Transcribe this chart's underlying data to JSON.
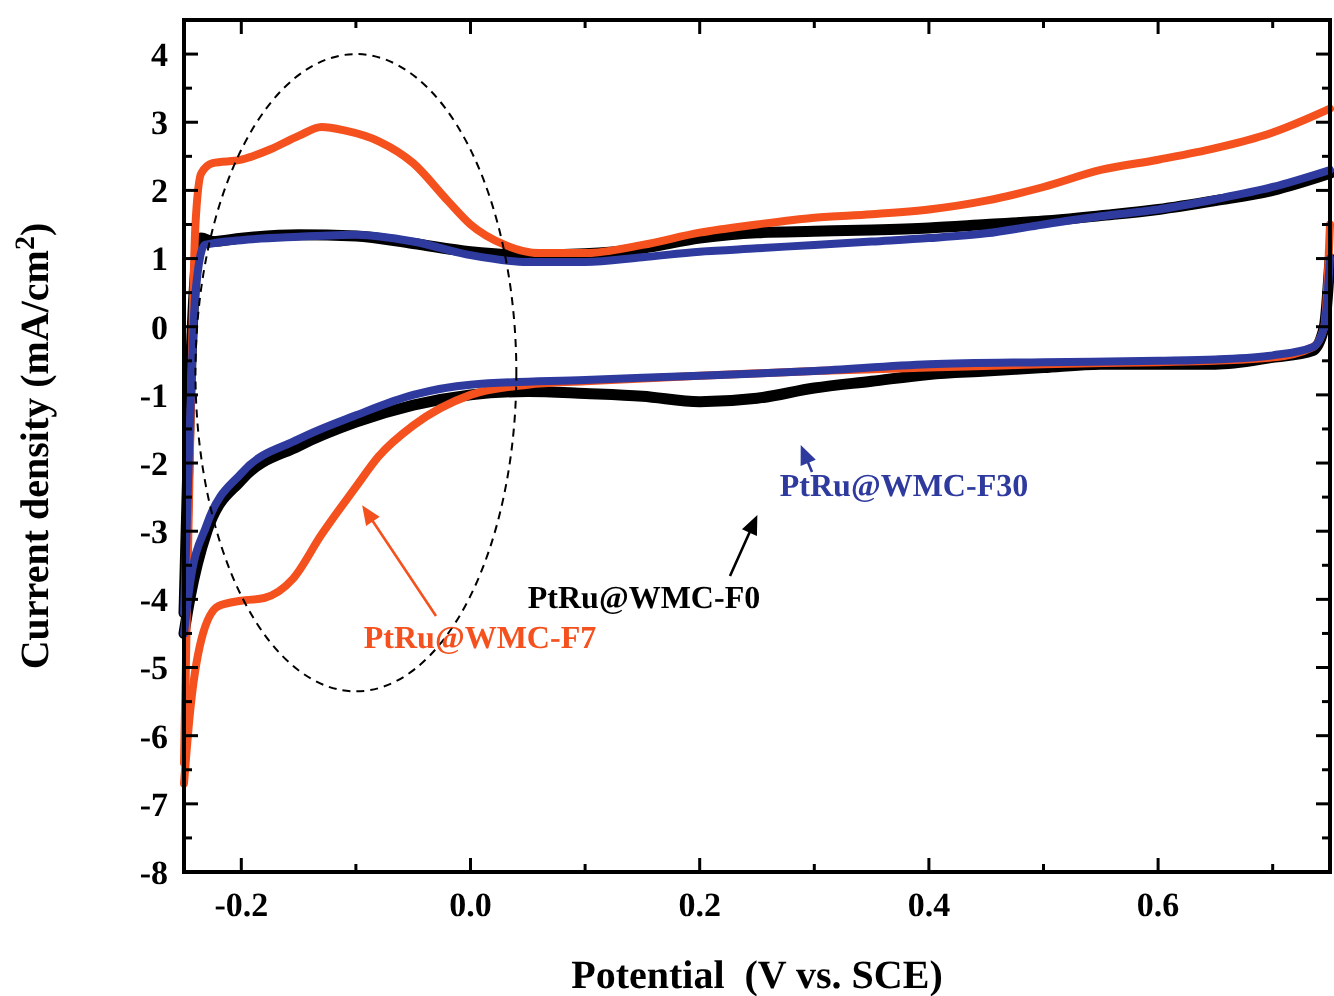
{
  "chart_data": {
    "type": "line",
    "xlabel": "Potential  (V vs. SCE)",
    "ylabel": "Current density (mA/cm$^{2}$)",
    "xlim": [
      -0.25,
      0.75
    ],
    "ylim": [
      -8,
      4.5
    ],
    "xticks": [
      {
        "value": -0.2,
        "label": "-0.2"
      },
      {
        "value": -0.1,
        "label": null
      },
      {
        "value": 0,
        "label": "0.0"
      },
      {
        "value": 0.1,
        "label": null
      },
      {
        "value": 0.2,
        "label": "0.2"
      },
      {
        "value": 0.3,
        "label": null
      },
      {
        "value": 0.4,
        "label": "0.4"
      },
      {
        "value": 0.5,
        "label": null
      },
      {
        "value": 0.6,
        "label": "0.6"
      },
      {
        "value": 0.7,
        "label": null
      }
    ],
    "yticks": [
      -8,
      {
        "value": -7.5,
        "label": null
      },
      -7,
      {
        "value": -6.5,
        "label": null
      },
      -6,
      {
        "value": -5.5,
        "label": null
      },
      -5,
      {
        "value": -4.5,
        "label": null
      },
      -4,
      {
        "value": -3.5,
        "label": null
      },
      -3,
      {
        "value": -2.5,
        "label": null
      },
      -2,
      {
        "value": -1.5,
        "label": null
      },
      -1,
      {
        "value": -0.5,
        "label": null
      },
      0,
      {
        "value": 0.5,
        "label": null
      },
      1,
      {
        "value": 1.5,
        "label": null
      },
      2,
      {
        "value": 2.5,
        "label": null
      },
      3,
      {
        "value": 3.5,
        "label": null
      },
      4
    ],
    "grid": false,
    "legend": "center",
    "marker": "none",
    "line_style": "solid",
    "series": [
      {
        "name": "PtRu@WMC-F0",
        "color": "#000000",
        "x": [
          -0.25,
          -0.245,
          -0.24,
          -0.235,
          -0.225,
          -0.2,
          -0.15,
          -0.1,
          -0.05,
          0.0,
          0.05,
          0.1,
          0.15,
          0.2,
          0.25,
          0.3,
          0.35,
          0.4,
          0.45,
          0.5,
          0.55,
          0.6,
          0.65,
          0.7,
          0.75
        ],
        "values": [
          -4.2,
          -1,
          0.8,
          1.3,
          1.25,
          1.3,
          1.35,
          1.33,
          1.22,
          1.1,
          1.05,
          1.07,
          1.15,
          1.3,
          1.38,
          1.4,
          1.42,
          1.45,
          1.5,
          1.55,
          1.63,
          1.72,
          1.85,
          2.0,
          2.25
        ]
      },
      {
        "color": "#000000",
        "x": [
          -0.25,
          -0.245,
          -0.23,
          -0.2,
          -0.15,
          -0.1,
          -0.05,
          0.0,
          0.05,
          0.1,
          0.15,
          0.2,
          0.25,
          0.3,
          0.35,
          0.4,
          0.45,
          0.5,
          0.55,
          0.6,
          0.65,
          0.7,
          0.735,
          0.745,
          0.75
        ],
        "values": [
          -4.5,
          -4.0,
          -3.0,
          -2.25,
          -1.75,
          -1.4,
          -1.15,
          -1.0,
          -0.95,
          -0.98,
          -1.02,
          -1.1,
          -1.05,
          -0.9,
          -0.8,
          -0.7,
          -0.65,
          -0.6,
          -0.55,
          -0.55,
          -0.55,
          -0.45,
          -0.35,
          0,
          1.0
        ]
      },
      {
        "name": "PtRu@WMC-F7",
        "color": "#f4511e",
        "x": [
          -0.25,
          -0.245,
          -0.24,
          -0.235,
          -0.225,
          -0.2,
          -0.175,
          -0.15,
          -0.13,
          -0.11,
          -0.08,
          -0.05,
          -0.02,
          0.0,
          0.03,
          0.06,
          0.1,
          0.15,
          0.2,
          0.25,
          0.3,
          0.35,
          0.4,
          0.45,
          0.5,
          0.55,
          0.6,
          0.65,
          0.7,
          0.75
        ],
        "values": [
          -6.4,
          -2,
          1.5,
          2.25,
          2.4,
          2.45,
          2.6,
          2.8,
          2.93,
          2.88,
          2.72,
          2.4,
          1.85,
          1.5,
          1.2,
          1.08,
          1.08,
          1.2,
          1.38,
          1.5,
          1.6,
          1.65,
          1.72,
          1.85,
          2.05,
          2.3,
          2.45,
          2.62,
          2.85,
          3.2
        ]
      },
      {
        "color": "#f4511e",
        "x": [
          -0.25,
          -0.245,
          -0.235,
          -0.22,
          -0.2,
          -0.18,
          -0.155,
          -0.13,
          -0.1,
          -0.08,
          -0.05,
          0.0,
          0.05,
          0.1,
          0.2,
          0.3,
          0.4,
          0.5,
          0.6,
          0.65,
          0.7,
          0.735,
          0.745,
          0.75
        ],
        "values": [
          -6.7,
          -5.7,
          -4.6,
          -4.1,
          -4.02,
          -3.98,
          -3.7,
          -3.05,
          -2.35,
          -1.9,
          -1.45,
          -1.0,
          -0.85,
          -0.8,
          -0.72,
          -0.65,
          -0.6,
          -0.55,
          -0.52,
          -0.5,
          -0.45,
          -0.3,
          0,
          1.5
        ]
      },
      {
        "name": "PtRu@WMC-F30",
        "color": "#2e3a9e",
        "x": [
          -0.25,
          -0.245,
          -0.24,
          -0.232,
          -0.2,
          -0.15,
          -0.1,
          -0.05,
          0.0,
          0.05,
          0.1,
          0.15,
          0.2,
          0.25,
          0.3,
          0.35,
          0.4,
          0.45,
          0.5,
          0.55,
          0.6,
          0.65,
          0.7,
          0.75
        ],
        "values": [
          -4.2,
          -1.5,
          0.5,
          1.2,
          1.27,
          1.32,
          1.35,
          1.25,
          1.05,
          0.95,
          0.95,
          1.02,
          1.1,
          1.15,
          1.2,
          1.25,
          1.3,
          1.37,
          1.5,
          1.62,
          1.72,
          1.87,
          2.05,
          2.3
        ]
      },
      {
        "color": "#2e3a9e",
        "x": [
          -0.25,
          -0.245,
          -0.23,
          -0.2,
          -0.15,
          -0.1,
          -0.05,
          0.0,
          0.1,
          0.2,
          0.3,
          0.4,
          0.5,
          0.6,
          0.65,
          0.7,
          0.735,
          0.745,
          0.75
        ],
        "values": [
          -4.5,
          -3.8,
          -2.9,
          -2.15,
          -1.65,
          -1.3,
          -1.0,
          -0.85,
          -0.78,
          -0.72,
          -0.65,
          -0.55,
          -0.52,
          -0.5,
          -0.48,
          -0.42,
          -0.3,
          0,
          1.0
        ]
      }
    ]
  }
}
